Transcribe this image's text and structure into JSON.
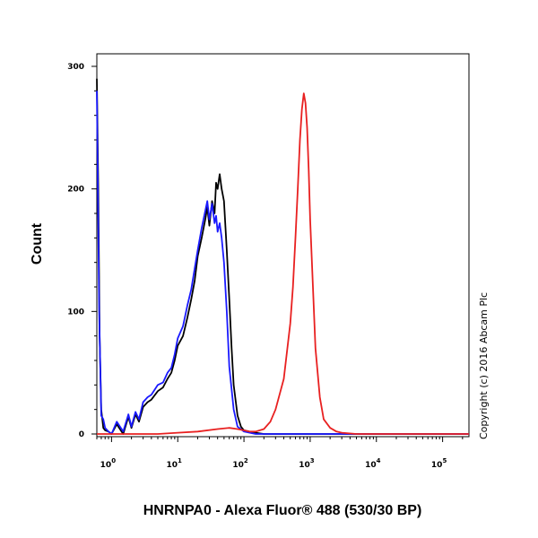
{
  "chart_data": {
    "type": "line",
    "xlabel": "HNRNPA0 - Alexa Fluor® 488 (530/30 BP)",
    "ylabel": "Count",
    "x_scale": "log",
    "xlim": [
      0.6,
      250000
    ],
    "ylim": [
      0,
      300
    ],
    "y_ticks": [
      "0",
      "100",
      "200",
      "300"
    ],
    "x_ticks": [
      {
        "base": "10",
        "exp": "0",
        "value": 1
      },
      {
        "base": "10",
        "exp": "1",
        "value": 10
      },
      {
        "base": "10",
        "exp": "2",
        "value": 100
      },
      {
        "base": "10",
        "exp": "3",
        "value": 1000
      },
      {
        "base": "10",
        "exp": "4",
        "value": 10000
      },
      {
        "base": "10",
        "exp": "5",
        "value": 100000
      }
    ],
    "series": [
      {
        "color": "#000000",
        "x": [
          0.6,
          0.63,
          0.66,
          0.7,
          0.75,
          0.8,
          0.9,
          1.0,
          1.2,
          1.5,
          1.8,
          2.0,
          2.3,
          2.6,
          3.0,
          3.5,
          4.0,
          5.0,
          6.0,
          7.0,
          8.0,
          9.0,
          10,
          12,
          14,
          16,
          18,
          20,
          23,
          26,
          28,
          30,
          33,
          36,
          38,
          40,
          43,
          46,
          50,
          55,
          60,
          65,
          70,
          80,
          90,
          100,
          120,
          150,
          200,
          300,
          500,
          1000,
          10000,
          250000
        ],
        "y": [
          290,
          200,
          80,
          20,
          5,
          3,
          2,
          0,
          8,
          0,
          14,
          5,
          16,
          10,
          22,
          26,
          28,
          35,
          38,
          45,
          50,
          60,
          72,
          80,
          95,
          110,
          125,
          145,
          160,
          175,
          185,
          170,
          190,
          180,
          205,
          200,
          212,
          200,
          190,
          150,
          110,
          70,
          40,
          15,
          6,
          3,
          2,
          1,
          0,
          0,
          0,
          0,
          0,
          0
        ]
      },
      {
        "color": "#1a1aff",
        "x": [
          0.6,
          0.65,
          0.7,
          0.75,
          0.8,
          0.9,
          1.0,
          1.2,
          1.5,
          1.8,
          2.0,
          2.3,
          2.6,
          3.0,
          3.5,
          4.0,
          5.0,
          6.0,
          7.0,
          8.0,
          9.0,
          10,
          12,
          14,
          16,
          18,
          20,
          23,
          26,
          28,
          30,
          33,
          36,
          38,
          40,
          43,
          46,
          50,
          55,
          60,
          70,
          80,
          100,
          150,
          250000
        ],
        "y": [
          280,
          100,
          15,
          12,
          5,
          2,
          0,
          10,
          2,
          16,
          6,
          18,
          12,
          26,
          30,
          32,
          40,
          42,
          50,
          54,
          65,
          78,
          88,
          105,
          118,
          135,
          150,
          168,
          182,
          190,
          175,
          188,
          172,
          178,
          165,
          172,
          160,
          140,
          100,
          55,
          20,
          6,
          2,
          0,
          0
        ]
      },
      {
        "color": "#e82020",
        "x": [
          0.6,
          1.0,
          5.0,
          10,
          20,
          40,
          60,
          80,
          100,
          120,
          150,
          200,
          250,
          300,
          400,
          500,
          550,
          600,
          650,
          700,
          750,
          800,
          850,
          900,
          950,
          1000,
          1100,
          1200,
          1400,
          1600,
          2000,
          2500,
          3000,
          5000,
          250000
        ],
        "y": [
          0,
          0,
          0,
          1,
          2,
          4,
          5,
          4,
          3,
          2,
          2,
          4,
          10,
          20,
          45,
          90,
          120,
          160,
          200,
          240,
          265,
          278,
          270,
          250,
          215,
          175,
          120,
          70,
          30,
          12,
          5,
          2,
          1,
          0,
          0
        ]
      }
    ]
  },
  "copyright": "Copyright (c) 2016 Abcam Plc"
}
